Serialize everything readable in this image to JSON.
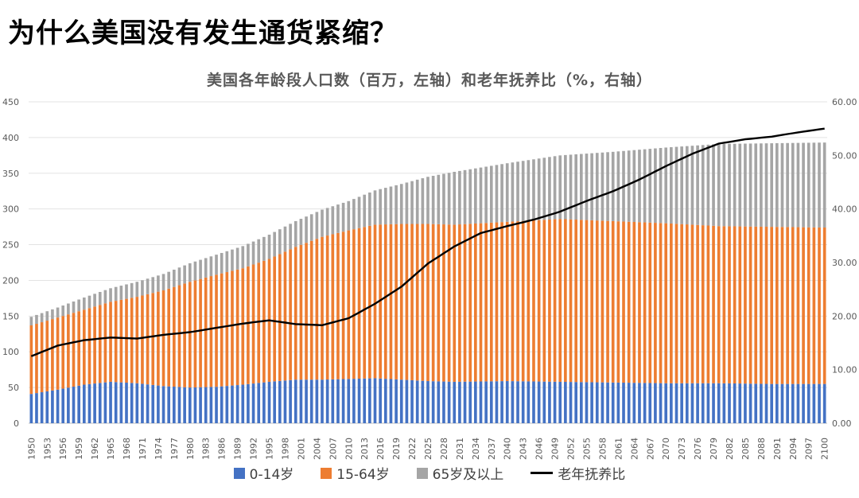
{
  "headline": "为什么美国没有发生通货紧缩？",
  "chart_data": {
    "type": "bar",
    "title": "美国各年龄段人口数（百万，左轴）和老年抚养比（%，右轴）",
    "stacked": true,
    "left_axis": {
      "min": 0,
      "max": 450,
      "step": 50,
      "ticks": [
        "0",
        "50",
        "100",
        "150",
        "200",
        "250",
        "300",
        "350",
        "400",
        "450"
      ]
    },
    "right_axis": {
      "min": 0,
      "max": 60,
      "step": 10,
      "ticks": [
        "0.00",
        "10.00",
        "20.00",
        "30.00",
        "40.00",
        "50.00",
        "60.00"
      ]
    },
    "x_tick_labels": [
      "1950",
      "1953",
      "1956",
      "1959",
      "1962",
      "1965",
      "1968",
      "1971",
      "1974",
      "1977",
      "1980",
      "1983",
      "1986",
      "1989",
      "1992",
      "1995",
      "1998",
      "2001",
      "2004",
      "2007",
      "2010",
      "2013",
      "2016",
      "2019",
      "2022",
      "2025",
      "2028",
      "2031",
      "2034",
      "2037",
      "2040",
      "2043",
      "2046",
      "2049",
      "2052",
      "2055",
      "2058",
      "2061",
      "2064",
      "2067",
      "2070",
      "2073",
      "2076",
      "2079",
      "2082",
      "2085",
      "2088",
      "2091",
      "2094",
      "2097",
      "2100"
    ],
    "x_start": 1950,
    "x_end": 2100,
    "series": [
      {
        "name": "0-14岁",
        "color": "#4472C4",
        "anchors": [
          [
            1950,
            41
          ],
          [
            1955,
            47
          ],
          [
            1960,
            54
          ],
          [
            1965,
            58
          ],
          [
            1970,
            56
          ],
          [
            1975,
            52
          ],
          [
            1980,
            50
          ],
          [
            1985,
            51
          ],
          [
            1990,
            54
          ],
          [
            1995,
            58
          ],
          [
            2000,
            61
          ],
          [
            2005,
            61
          ],
          [
            2010,
            62
          ],
          [
            2015,
            63
          ],
          [
            2020,
            61
          ],
          [
            2025,
            59
          ],
          [
            2030,
            58
          ],
          [
            2040,
            59
          ],
          [
            2050,
            58
          ],
          [
            2060,
            57
          ],
          [
            2070,
            56
          ],
          [
            2080,
            56
          ],
          [
            2090,
            55
          ],
          [
            2100,
            55
          ]
        ]
      },
      {
        "name": "15-64岁",
        "color": "#ED7D31",
        "anchors": [
          [
            1950,
            96
          ],
          [
            1955,
            101
          ],
          [
            1960,
            105
          ],
          [
            1965,
            112
          ],
          [
            1970,
            121
          ],
          [
            1975,
            134
          ],
          [
            1980,
            148
          ],
          [
            1985,
            157
          ],
          [
            1990,
            163
          ],
          [
            1995,
            172
          ],
          [
            2000,
            186
          ],
          [
            2005,
            200
          ],
          [
            2010,
            208
          ],
          [
            2015,
            215
          ],
          [
            2020,
            218
          ],
          [
            2025,
            220
          ],
          [
            2030,
            220
          ],
          [
            2040,
            223
          ],
          [
            2050,
            228
          ],
          [
            2060,
            226
          ],
          [
            2070,
            224
          ],
          [
            2080,
            220
          ],
          [
            2090,
            220
          ],
          [
            2100,
            219
          ]
        ]
      },
      {
        "name": "65岁及以上",
        "color": "#A5A5A5",
        "anchors": [
          [
            1950,
            12
          ],
          [
            1955,
            14
          ],
          [
            1960,
            17
          ],
          [
            1965,
            19
          ],
          [
            1970,
            21
          ],
          [
            1975,
            23
          ],
          [
            1980,
            26
          ],
          [
            1985,
            28
          ],
          [
            1990,
            31
          ],
          [
            1995,
            34
          ],
          [
            2000,
            36
          ],
          [
            2005,
            38
          ],
          [
            2010,
            41
          ],
          [
            2015,
            48
          ],
          [
            2020,
            56
          ],
          [
            2025,
            66
          ],
          [
            2030,
            74
          ],
          [
            2040,
            82
          ],
          [
            2050,
            89
          ],
          [
            2060,
            97
          ],
          [
            2070,
            106
          ],
          [
            2080,
            115
          ],
          [
            2090,
            117
          ],
          [
            2100,
            119
          ]
        ]
      },
      {
        "name": "老年抚养比",
        "color": "#000000",
        "type": "line",
        "axis": "right",
        "anchors": [
          [
            1950,
            12.5
          ],
          [
            1955,
            14.5
          ],
          [
            1960,
            15.5
          ],
          [
            1965,
            16
          ],
          [
            1970,
            15.8
          ],
          [
            1975,
            16.5
          ],
          [
            1980,
            17
          ],
          [
            1985,
            17.8
          ],
          [
            1990,
            18.6
          ],
          [
            1995,
            19.2
          ],
          [
            2000,
            18.5
          ],
          [
            2005,
            18.3
          ],
          [
            2010,
            19.6
          ],
          [
            2015,
            22.3
          ],
          [
            2020,
            25.5
          ],
          [
            2025,
            29.8
          ],
          [
            2030,
            33
          ],
          [
            2035,
            35.5
          ],
          [
            2040,
            36.8
          ],
          [
            2045,
            38
          ],
          [
            2050,
            39.5
          ],
          [
            2055,
            41.5
          ],
          [
            2060,
            43.3
          ],
          [
            2065,
            45.5
          ],
          [
            2070,
            48
          ],
          [
            2075,
            50.3
          ],
          [
            2080,
            52.2
          ],
          [
            2085,
            53
          ],
          [
            2090,
            53.5
          ],
          [
            2095,
            54.3
          ],
          [
            2100,
            55
          ]
        ]
      }
    ],
    "legend": [
      "0-14岁",
      "15-64岁",
      "65岁及以上",
      "老年抚养比"
    ],
    "legend_position": "bottom",
    "grid": true
  }
}
